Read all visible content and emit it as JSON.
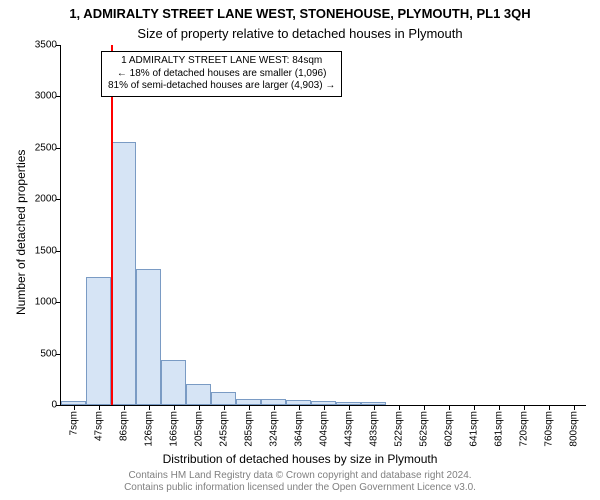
{
  "header": {
    "title": "1, ADMIRALTY STREET LANE WEST, STONEHOUSE, PLYMOUTH, PL1 3QH",
    "subtitle": "Size of property relative to detached houses in Plymouth",
    "title_fontsize": 13,
    "subtitle_fontsize": 13
  },
  "axes": {
    "ylabel": "Number of detached properties",
    "xlabel": "Distribution of detached houses by size in Plymouth",
    "label_fontsize": 12
  },
  "footer": {
    "line1": "Contains HM Land Registry data © Crown copyright and database right 2024.",
    "line2": "Contains public information licensed under the Open Government Licence v3.0.",
    "fontsize": 10
  },
  "chart": {
    "ymax": 3500,
    "ytick_step": 500,
    "tick_fontsize": 10,
    "bar_fill": "#d6e4f5",
    "bar_border": "#7a9bc4",
    "background_color": "#ffffff",
    "marker_line_color": "#ff0000",
    "marker_line_width": 2,
    "marker_x_index": 2,
    "bars": [
      {
        "label": "7sqm",
        "value": 40
      },
      {
        "label": "47sqm",
        "value": 1240
      },
      {
        "label": "86sqm",
        "value": 2560
      },
      {
        "label": "126sqm",
        "value": 1320
      },
      {
        "label": "166sqm",
        "value": 440
      },
      {
        "label": "205sqm",
        "value": 200
      },
      {
        "label": "245sqm",
        "value": 130
      },
      {
        "label": "285sqm",
        "value": 60
      },
      {
        "label": "324sqm",
        "value": 55
      },
      {
        "label": "364sqm",
        "value": 45
      },
      {
        "label": "404sqm",
        "value": 35
      },
      {
        "label": "443sqm",
        "value": 30
      },
      {
        "label": "483sqm",
        "value": 25
      },
      {
        "label": "522sqm",
        "value": 0
      },
      {
        "label": "562sqm",
        "value": 0
      },
      {
        "label": "602sqm",
        "value": 0
      },
      {
        "label": "641sqm",
        "value": 0
      },
      {
        "label": "681sqm",
        "value": 0
      },
      {
        "label": "720sqm",
        "value": 0
      },
      {
        "label": "760sqm",
        "value": 0
      },
      {
        "label": "800sqm",
        "value": 0
      }
    ]
  },
  "annotation": {
    "line1": "1 ADMIRALTY STREET LANE WEST: 84sqm",
    "line2": "← 18% of detached houses are smaller (1,096)",
    "line3": "81% of semi-detached houses are larger (4,903) →",
    "fontsize": 10
  }
}
